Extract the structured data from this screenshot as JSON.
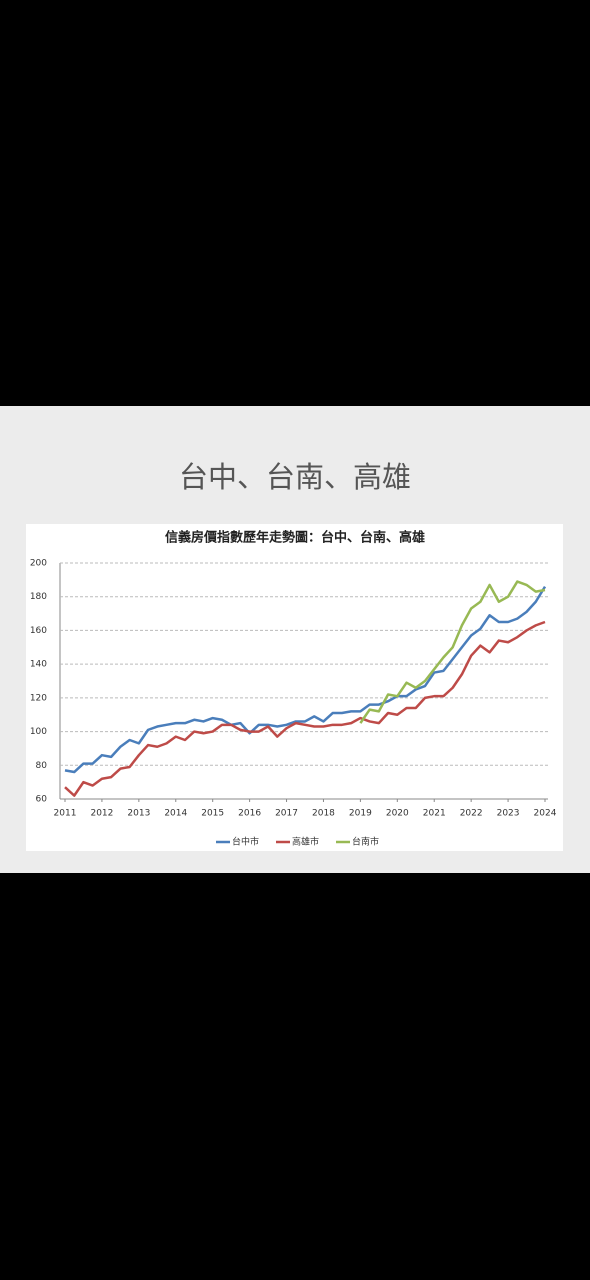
{
  "header": {
    "title": "台中、台南、高雄"
  },
  "chart_data": {
    "type": "line",
    "title": "信義房價指數歷年走勢圖：台中、台南、高雄",
    "x": [
      2011,
      2011.25,
      2011.5,
      2011.75,
      2012,
      2012.25,
      2012.5,
      2012.75,
      2013,
      2013.25,
      2013.5,
      2013.75,
      2014,
      2014.25,
      2014.5,
      2014.75,
      2015,
      2015.25,
      2015.5,
      2015.75,
      2016,
      2016.25,
      2016.5,
      2016.75,
      2017,
      2017.25,
      2017.5,
      2017.75,
      2018,
      2018.25,
      2018.5,
      2018.75,
      2019,
      2019.25,
      2019.5,
      2019.75,
      2020,
      2020.25,
      2020.5,
      2020.75,
      2021,
      2021.25,
      2021.5,
      2021.75,
      2022,
      2022.25,
      2022.5,
      2022.75,
      2023,
      2023.25,
      2023.5,
      2023.75,
      2024
    ],
    "series": [
      {
        "name": "台中市",
        "color": "#4a7ebb",
        "values": [
          77,
          76,
          81,
          81,
          86,
          85,
          91,
          95,
          93,
          101,
          103,
          104,
          105,
          105,
          107,
          106,
          108,
          107,
          104,
          105,
          99,
          104,
          104,
          103,
          104,
          106,
          106,
          109,
          106,
          111,
          111,
          112,
          112,
          116,
          116,
          118,
          121,
          121,
          125,
          127,
          135,
          136,
          143,
          150,
          157,
          161,
          169,
          165,
          165,
          167,
          171,
          177,
          186
        ]
      },
      {
        "name": "高雄市",
        "color": "#be4b48",
        "values": [
          67,
          62,
          70,
          68,
          72,
          73,
          78,
          79,
          86,
          92,
          91,
          93,
          97,
          95,
          100,
          99,
          100,
          104,
          104,
          101,
          100,
          100,
          103,
          97,
          102,
          105,
          104,
          103,
          103,
          104,
          104,
          105,
          108,
          106,
          105,
          111,
          110,
          114,
          114,
          120,
          121,
          121,
          126,
          134,
          145,
          151,
          147,
          154,
          153,
          156,
          160,
          163,
          165
        ]
      },
      {
        "name": "台南市",
        "color": "#98b954",
        "values": [
          null,
          null,
          null,
          null,
          null,
          null,
          null,
          null,
          null,
          null,
          null,
          null,
          null,
          null,
          null,
          null,
          null,
          null,
          null,
          null,
          null,
          null,
          null,
          null,
          null,
          null,
          null,
          null,
          null,
          null,
          null,
          null,
          105,
          113,
          112,
          122,
          121,
          129,
          126,
          130,
          137,
          144,
          150,
          163,
          173,
          177,
          187,
          177,
          180,
          189,
          187,
          183,
          184
        ]
      }
    ],
    "xlim": [
      2011,
      2024
    ],
    "xticks": [
      2011,
      2012,
      2013,
      2014,
      2015,
      2016,
      2017,
      2018,
      2019,
      2020,
      2021,
      2022,
      2023,
      2024
    ],
    "ylim": [
      60,
      200
    ],
    "yticks": [
      60,
      80,
      100,
      120,
      140,
      160,
      180,
      200
    ],
    "grid": true
  }
}
